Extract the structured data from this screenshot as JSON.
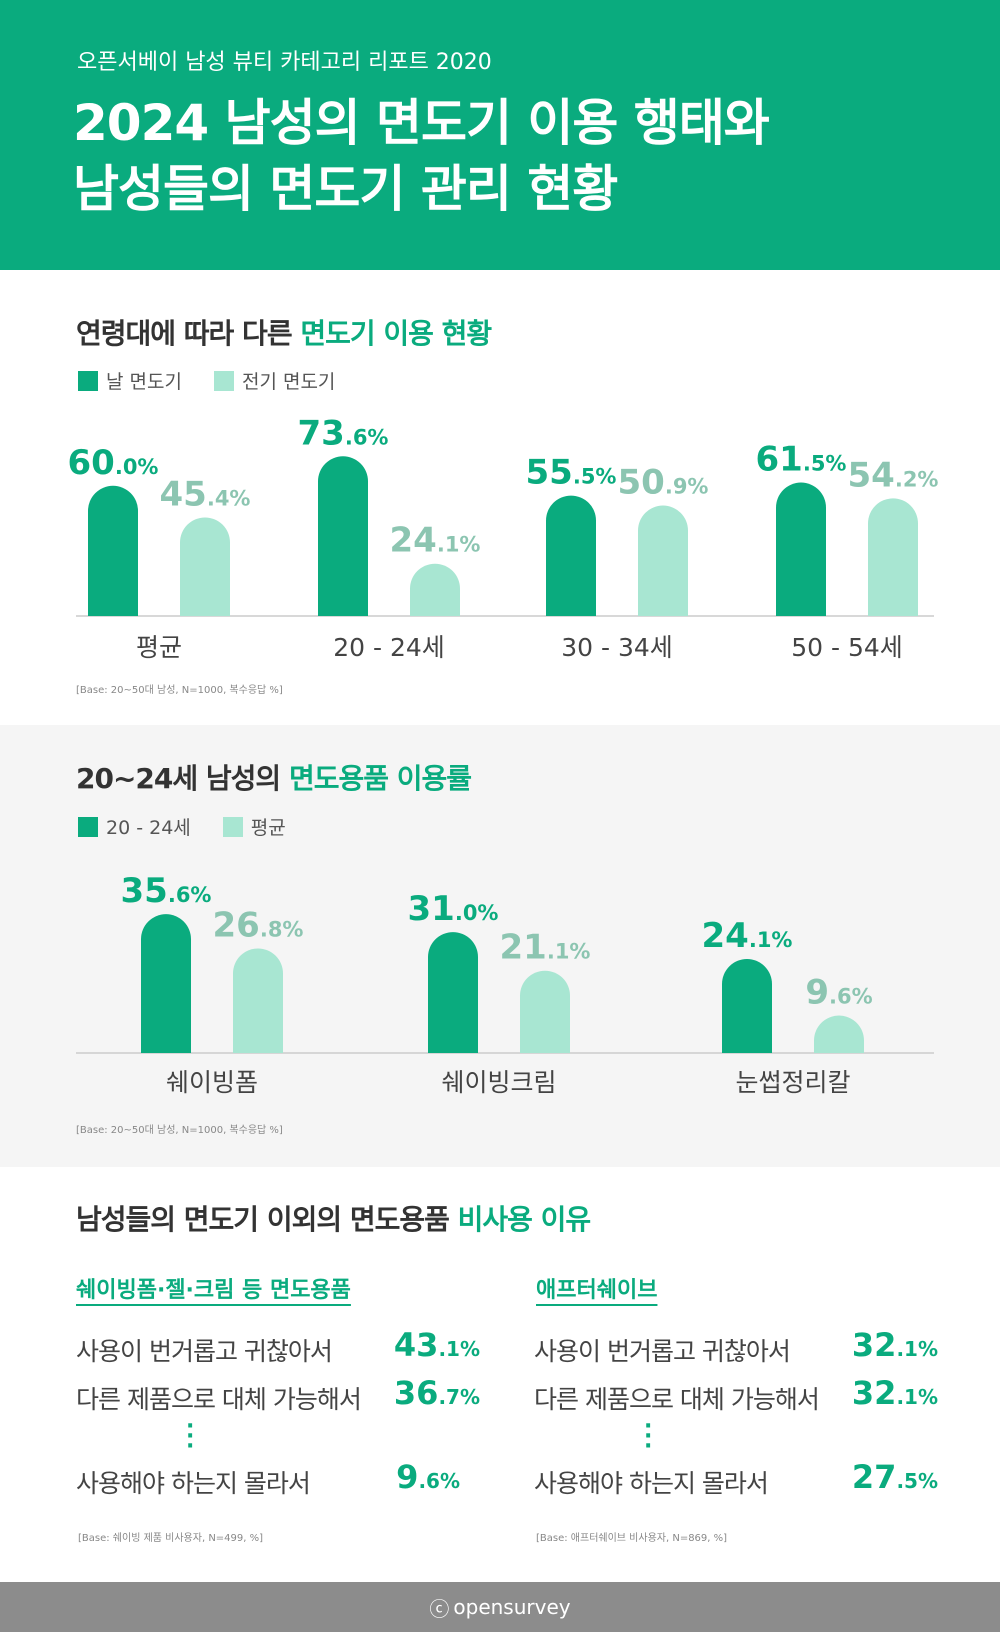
{
  "header": {
    "subtitle": "오픈서베이 남성 뷰티 카테고리 리포트 2020",
    "title_line1": "2024 남성의 면도기 이용 행태와",
    "title_line2": "남성들의 면도기 관리 현황"
  },
  "section1": {
    "title_plain": "연령대에 따라 다른 ",
    "title_highlight": "면도기 이용 현황",
    "legend": [
      "날 면도기",
      "전기 면도기"
    ],
    "note": "[Base: 20~50대 남성, N=1000, 복수응답 %]"
  },
  "section2": {
    "title_plain": "20~24세 남성의 ",
    "title_highlight": "면도용품 이용률",
    "legend": [
      "20 - 24세",
      "평균"
    ],
    "note": "[Base: 20~50대 남성, N=1000, 복수응답 %]"
  },
  "section3": {
    "title_plain": "남성들의 면도기 이외의 면도용품 ",
    "title_highlight": "비사용 이유",
    "left": {
      "title": "쉐이빙폼·젤·크림 등 면도용품",
      "rows": [
        {
          "reason": "사용이 번거롭고 귀찮아서",
          "int": "43",
          "dec": ".1%"
        },
        {
          "reason": "다른 제품으로 대체 가능해서",
          "int": "36",
          "dec": ".7%"
        },
        {
          "reason": "사용해야 하는지 몰라서",
          "int": "9",
          "dec": ".6%"
        }
      ],
      "note": "[Base: 쉐이빙 제품 비사용자, N=499, %]"
    },
    "right": {
      "title": "애프터쉐이브",
      "rows": [
        {
          "reason": "사용이 번거롭고 귀찮아서",
          "int": "32",
          "dec": ".1%"
        },
        {
          "reason": "다른 제품으로 대체 가능해서",
          "int": "32",
          "dec": ".1%"
        },
        {
          "reason": "사용해야 하는지 몰라서",
          "int": "27",
          "dec": ".5%"
        }
      ],
      "note": "[Base: 애프터쉐이브 비사용자, N=869, %]"
    }
  },
  "footer": {
    "brand": "opensurvey",
    "mark": "ⓒ"
  },
  "colors": {
    "accent": "#0aab7e",
    "light": "#a8e6d2",
    "light_text": "#8cc5b1"
  },
  "chart_data": [
    {
      "type": "bar",
      "categories": [
        "평균",
        "20 - 24세",
        "30 - 34세",
        "50 - 54세"
      ],
      "series": [
        {
          "name": "날 면도기",
          "values": [
            60.0,
            73.6,
            55.5,
            61.5
          ]
        },
        {
          "name": "전기 면도기",
          "values": [
            45.4,
            24.1,
            50.9,
            54.2
          ]
        }
      ],
      "unit": "%"
    },
    {
      "type": "bar",
      "categories": [
        "쉐이빙폼",
        "쉐이빙크림",
        "눈썹정리칼"
      ],
      "series": [
        {
          "name": "20 - 24세",
          "values": [
            35.6,
            31.0,
            24.1
          ]
        },
        {
          "name": "평균",
          "values": [
            26.8,
            21.1,
            9.6
          ]
        }
      ],
      "unit": "%"
    }
  ]
}
